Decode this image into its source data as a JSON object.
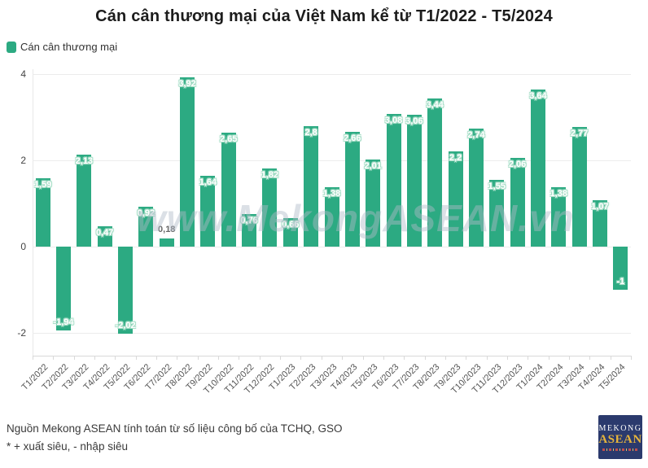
{
  "title": "Cán cân thương mại của Việt Nam kể từ T1/2022 - T5/2024",
  "legend": {
    "label": "Cán cân thương mại",
    "color": "#2caa82"
  },
  "watermark": "www.MekongASEAN.vn",
  "footer": {
    "source": "Nguồn Mekong ASEAN tính toán từ số liệu công bố của TCHQ, GSO",
    "note": "* + xuất siêu, - nhập siêu"
  },
  "logo": {
    "line1": "MEKONG",
    "line2": "ASEAN"
  },
  "chart_data": {
    "type": "bar",
    "title": "Cán cân thương mại của Việt Nam kể từ T1/2022 - T5/2024",
    "series_name": "Cán cân thương mại",
    "categories": [
      "T1/2022",
      "T2/2022",
      "T3/2022",
      "T4/2022",
      "T5/2022",
      "T6/2022",
      "T7/2022",
      "T8/2022",
      "T9/2022",
      "T10/2022",
      "T11/2022",
      "T12/2022",
      "T1/2023",
      "T2/2023",
      "T3/2023",
      "T4/2023",
      "T5/2023",
      "T6/2023",
      "T7/2023",
      "T8/2023",
      "T9/2023",
      "T10/2023",
      "T11/2023",
      "T12/2023",
      "T1/2024",
      "T2/2024",
      "T3/2024",
      "T4/2024",
      "T5/2024"
    ],
    "values": [
      1.59,
      -1.94,
      2.13,
      0.47,
      -2.02,
      0.92,
      0.18,
      3.92,
      1.64,
      2.65,
      0.76,
      1.82,
      0.66,
      2.8,
      1.38,
      2.66,
      2.01,
      3.08,
      3.06,
      3.44,
      2.2,
      2.74,
      1.55,
      2.06,
      3.64,
      1.38,
      2.77,
      1.07,
      -1
    ],
    "labels": [
      "1,59",
      "-1,94",
      "2,13",
      "0,47",
      "-2,02",
      "0,92",
      "0,18",
      "3,92",
      "1,64",
      "2,65",
      "0,76",
      "1,82",
      "0,66",
      "2,8",
      "1,38",
      "2,66",
      "2,01",
      "3,08",
      "3,06",
      "3,44",
      "2,2",
      "2,74",
      "1,55",
      "2,06",
      "3,64",
      "1,38",
      "2,77",
      "1,07",
      "-1"
    ],
    "y_ticks": [
      4,
      2,
      0,
      -2
    ],
    "ylim": [
      -2.55,
      4.11
    ],
    "bar_color": "#2caa82",
    "grid": true,
    "legend_position": "top-left",
    "xlabel": "",
    "ylabel": ""
  }
}
